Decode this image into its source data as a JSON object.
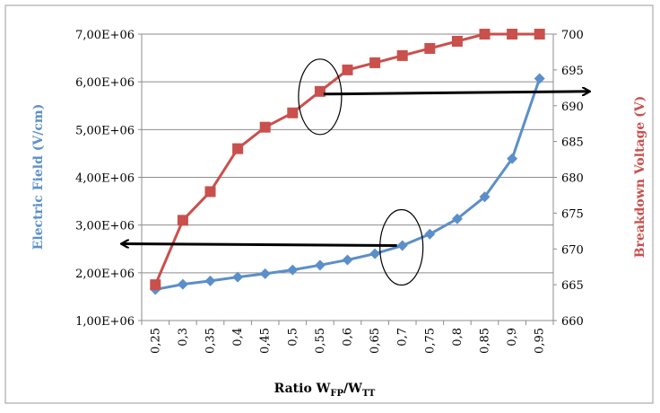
{
  "chart_data": {
    "type": "line",
    "title": "",
    "xlabel": {
      "main": "Ratio W",
      "sub1": "FP",
      "sep": "/W",
      "sub2": "TT"
    },
    "categories": [
      "0,25",
      "0,3",
      "0,35",
      "0,4",
      "0,45",
      "0,5",
      "0,55",
      "0,6",
      "0,65",
      "0,7",
      "0,75",
      "0,8",
      "0,85",
      "0,9",
      "0,95"
    ],
    "x_values": [
      0.25,
      0.3,
      0.35,
      0.4,
      0.45,
      0.5,
      0.55,
      0.6,
      0.65,
      0.7,
      0.75,
      0.8,
      0.85,
      0.9,
      0.95
    ],
    "y_left": {
      "label": "Electric Field (V/cm)",
      "ticks": [
        "1,00E+06",
        "2,00E+06",
        "3,00E+06",
        "4,00E+06",
        "5,00E+06",
        "6,00E+06",
        "7,00E+06"
      ],
      "range": [
        1000000,
        7000000
      ],
      "color": "#5b8fc9"
    },
    "y_right": {
      "label": "Breakdown Voltage (V)",
      "ticks": [
        "660",
        "665",
        "670",
        "675",
        "680",
        "685",
        "690",
        "695",
        "700"
      ],
      "range": [
        660,
        700
      ],
      "color": "#c9504d"
    },
    "series": [
      {
        "axis": "left",
        "marker": "diamond",
        "color": "#5b8fc9",
        "values": [
          1650000,
          1760000,
          1830000,
          1910000,
          1980000,
          2060000,
          2160000,
          2270000,
          2400000,
          2570000,
          2810000,
          3130000,
          3590000,
          4390000,
          6070000
        ]
      },
      {
        "axis": "right",
        "marker": "square",
        "color": "#c9504d",
        "values": [
          665,
          674,
          678,
          684,
          687,
          689,
          692,
          695,
          696,
          697,
          698,
          699,
          700,
          700,
          700
        ]
      }
    ],
    "annotations": [
      {
        "type": "ellipse",
        "near_category": "0,55",
        "series": "right"
      },
      {
        "type": "ellipse",
        "near_category": "0,7",
        "series": "left"
      },
      {
        "type": "arrow",
        "direction": "right",
        "from_category": "0,55",
        "series": "right"
      },
      {
        "type": "arrow",
        "direction": "left",
        "from_category": "0,7",
        "series": "left"
      }
    ],
    "grid": true,
    "legend": "none"
  }
}
